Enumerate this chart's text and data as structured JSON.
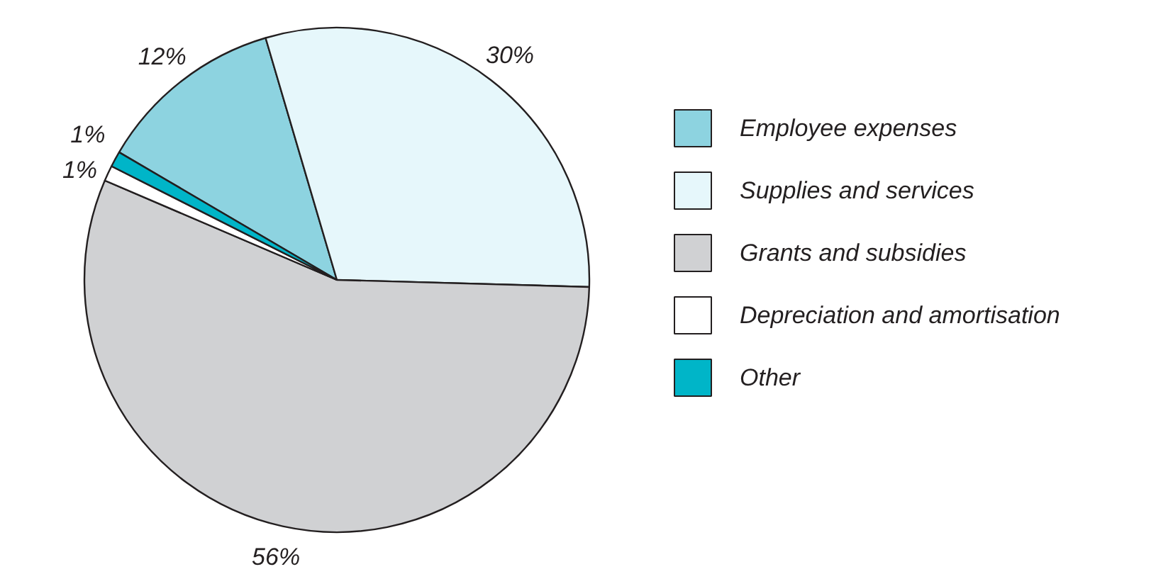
{
  "chart_data": {
    "type": "pie",
    "categories": [
      "Employee expenses",
      "Supplies and services",
      "Grants and subsidies",
      "Depreciation and amortisation",
      "Other"
    ],
    "values": [
      12,
      30,
      56,
      1,
      1
    ],
    "colors": [
      "#8dd3e0",
      "#e6f7fb",
      "#d0d1d3",
      "#ffffff",
      "#00b5c8"
    ],
    "value_labels": [
      "12%",
      "30%",
      "56%",
      "1%",
      "1%"
    ],
    "legend": "right"
  }
}
